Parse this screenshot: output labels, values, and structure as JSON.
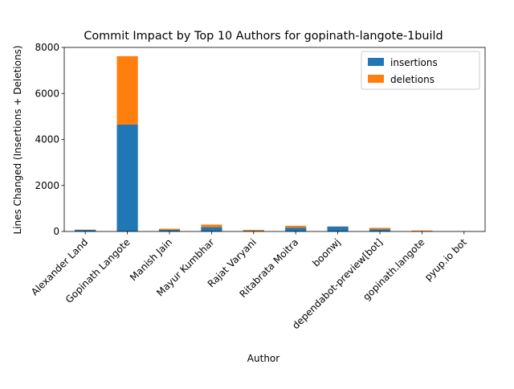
{
  "chart_data": {
    "type": "bar",
    "stacked": true,
    "title": "Commit Impact by Top 10 Authors for gopinath-langote-1build",
    "xlabel": "Author",
    "ylabel": "Lines Changed (Insertions + Deletions)",
    "ylim": [
      0,
      8000
    ],
    "yticks": [
      0,
      2000,
      4000,
      6000,
      8000
    ],
    "grid": false,
    "legend_position": "top-right",
    "categories": [
      "Alexander Land",
      "Gopinath Langote",
      "Manish Jain",
      "Mayur Kumbhar",
      "Rajat Varyani",
      "Ritabrata Moitra",
      "boonwj",
      "dependabot-preview[bot]",
      "gopinath.langote",
      "pyup.io bot"
    ],
    "series": [
      {
        "name": "insertions",
        "color": "#1f77b4",
        "values": [
          70,
          4650,
          70,
          190,
          30,
          170,
          210,
          100,
          10,
          2
        ]
      },
      {
        "name": "deletions",
        "color": "#ff7f0e",
        "values": [
          10,
          2970,
          50,
          110,
          40,
          80,
          10,
          60,
          30,
          2
        ]
      }
    ]
  }
}
